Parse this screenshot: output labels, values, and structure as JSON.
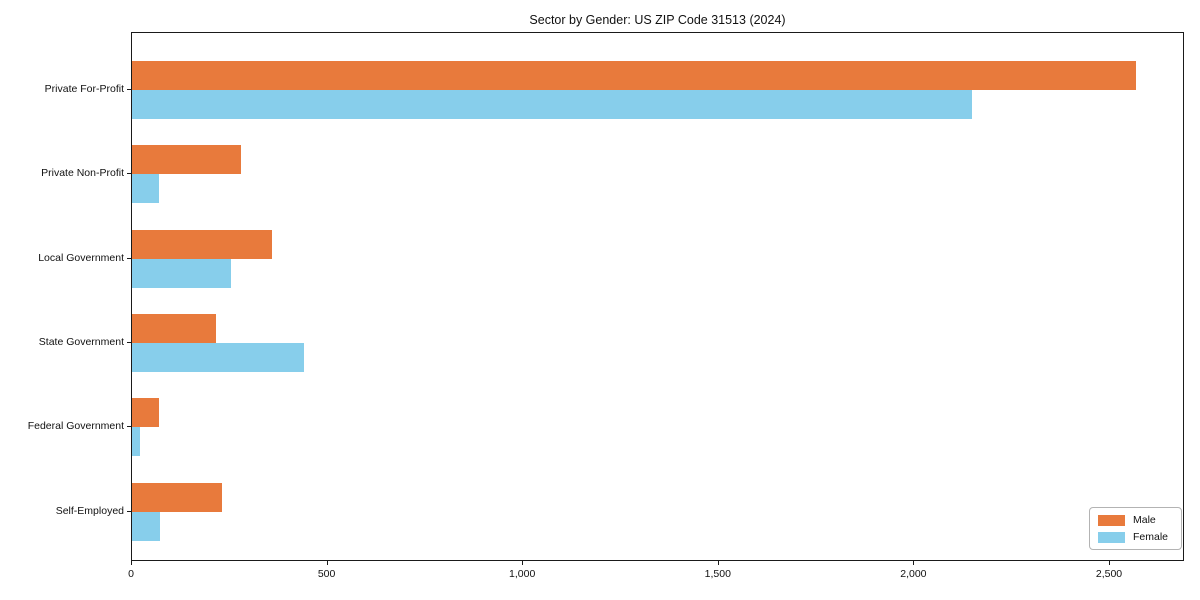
{
  "chart_data": {
    "type": "bar",
    "orientation": "horizontal",
    "title": "Sector by Gender: US ZIP Code 31513 (2024)",
    "categories": [
      "Private For-Profit",
      "Private Non-Profit",
      "Local Government",
      "State Government",
      "Federal Government",
      "Self-Employed"
    ],
    "series": [
      {
        "name": "Male",
        "color": "#e87a3c",
        "values": [
          2566,
          279,
          358,
          215,
          69,
          230
        ]
      },
      {
        "name": "Female",
        "color": "#87ceeb",
        "values": [
          2146,
          69,
          253,
          439,
          20,
          71
        ]
      }
    ],
    "xlabel": "",
    "ylabel": "",
    "xlim": [
      0,
      2690
    ],
    "xticks": [
      0,
      500,
      1000,
      1500,
      2000,
      2500
    ],
    "xtick_labels": [
      "0",
      "500",
      "1,000",
      "1,500",
      "2,000",
      "2,500"
    ],
    "legend": {
      "position": "lower right",
      "entries": [
        "Male",
        "Female"
      ]
    },
    "grid": false,
    "axis_color": "#1a1a1a",
    "background_color": "#ffffff"
  }
}
